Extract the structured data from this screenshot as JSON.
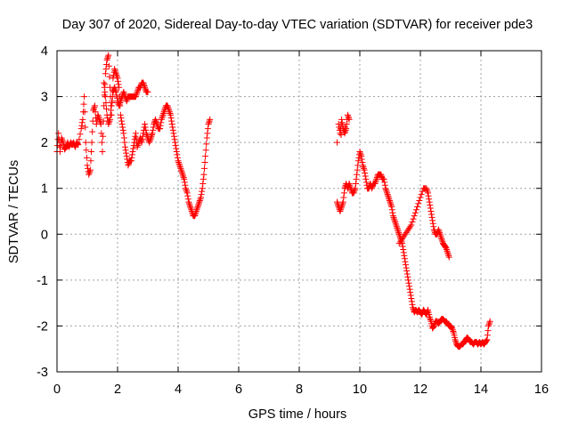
{
  "chart_data": {
    "type": "scatter",
    "title": "Day 307 of 2020, Sidereal Day-to-day VTEC variation (SDTVAR) for receiver pde3",
    "xlabel": "GPS time / hours",
    "ylabel": "SDTVAR / TECUs",
    "xlim": [
      0,
      16
    ],
    "ylim": [
      -3,
      4
    ],
    "xticks": [
      "0",
      "2",
      "4",
      "6",
      "8",
      "10",
      "12",
      "14",
      "16"
    ],
    "yticks": [
      "-3",
      "-2",
      "-1",
      "0",
      "1",
      "2",
      "3",
      "4"
    ],
    "grid": true,
    "series": [
      {
        "name": "SDTVAR",
        "color": "#ff0000",
        "marker": "plus",
        "segments": [
          [
            [
              0.0,
              1.8
            ],
            [
              0.05,
              2.2
            ],
            [
              0.1,
              1.8
            ],
            [
              0.15,
              2.1
            ],
            [
              0.2,
              2.0
            ],
            [
              0.25,
              1.85
            ],
            [
              0.3,
              1.9
            ],
            [
              0.35,
              2.0
            ],
            [
              0.4,
              1.9
            ],
            [
              0.45,
              2.0
            ],
            [
              0.5,
              1.95
            ],
            [
              0.55,
              2.0
            ],
            [
              0.6,
              1.9
            ],
            [
              0.65,
              2.0
            ],
            [
              0.7,
              1.95
            ],
            [
              0.8,
              2.3
            ],
            [
              0.85,
              2.5
            ],
            [
              0.9,
              3.0
            ],
            [
              0.95,
              2.0
            ],
            [
              1.0,
              1.5
            ],
            [
              1.05,
              1.3
            ],
            [
              1.1,
              1.4
            ],
            [
              1.15,
              2.0
            ],
            [
              1.2,
              2.7
            ],
            [
              1.25,
              2.8
            ],
            [
              1.3,
              2.4
            ],
            [
              1.35,
              2.6
            ],
            [
              1.4,
              2.5
            ],
            [
              1.45,
              2.4
            ],
            [
              1.5,
              1.8
            ],
            [
              1.55,
              2.8
            ],
            [
              1.6,
              3.5
            ],
            [
              1.65,
              3.8
            ],
            [
              1.7,
              3.9
            ],
            [
              1.75,
              3.2
            ],
            [
              1.8,
              2.6
            ],
            [
              1.85,
              3.4
            ],
            [
              1.9,
              3.6
            ],
            [
              1.95,
              3.5
            ],
            [
              2.0,
              3.4
            ],
            [
              2.05,
              3.2
            ],
            [
              2.1,
              2.6
            ],
            [
              2.15,
              2.4
            ],
            [
              2.2,
              2.2
            ],
            [
              2.25,
              1.9
            ],
            [
              2.3,
              1.7
            ],
            [
              2.35,
              1.5
            ],
            [
              2.4,
              1.6
            ],
            [
              2.45,
              1.6
            ],
            [
              2.5,
              1.8
            ],
            [
              2.55,
              2.0
            ],
            [
              2.6,
              2.2
            ],
            [
              2.65,
              1.9
            ],
            [
              2.7,
              2.0
            ],
            [
              2.75,
              2.1
            ],
            [
              2.8,
              2.0
            ],
            [
              2.85,
              2.2
            ],
            [
              2.9,
              2.4
            ],
            [
              2.95,
              2.2
            ],
            [
              3.0,
              2.1
            ],
            [
              3.05,
              2.0
            ],
            [
              3.1,
              2.1
            ],
            [
              3.15,
              2.2
            ],
            [
              3.2,
              2.4
            ],
            [
              3.25,
              2.5
            ],
            [
              3.3,
              2.4
            ],
            [
              3.35,
              2.3
            ],
            [
              3.4,
              2.3
            ],
            [
              3.45,
              2.5
            ],
            [
              3.5,
              2.6
            ],
            [
              3.55,
              2.7
            ],
            [
              3.6,
              2.8
            ],
            [
              3.65,
              2.8
            ],
            [
              3.7,
              2.7
            ],
            [
              3.75,
              2.6
            ],
            [
              3.8,
              2.4
            ],
            [
              3.85,
              2.2
            ],
            [
              3.9,
              2.0
            ],
            [
              3.95,
              1.8
            ],
            [
              4.0,
              1.6
            ],
            [
              4.05,
              1.5
            ],
            [
              4.1,
              1.4
            ],
            [
              4.15,
              1.3
            ],
            [
              4.2,
              1.2
            ],
            [
              4.25,
              1.0
            ],
            [
              4.3,
              0.9
            ],
            [
              4.35,
              0.7
            ],
            [
              4.4,
              0.6
            ],
            [
              4.45,
              0.5
            ],
            [
              4.5,
              0.4
            ],
            [
              4.55,
              0.4
            ],
            [
              4.6,
              0.5
            ],
            [
              4.65,
              0.6
            ],
            [
              4.7,
              0.7
            ],
            [
              4.75,
              0.8
            ],
            [
              4.8,
              1.0
            ],
            [
              4.85,
              1.3
            ],
            [
              4.9,
              1.7
            ],
            [
              4.95,
              2.1
            ],
            [
              5.0,
              2.4
            ],
            [
              5.05,
              2.5
            ]
          ],
          [
            [
              1.55,
              3.3
            ],
            [
              1.6,
              3.0
            ],
            [
              1.65,
              2.6
            ],
            [
              1.7,
              2.4
            ],
            [
              1.75,
              2.5
            ],
            [
              1.8,
              2.8
            ],
            [
              1.85,
              3.1
            ],
            [
              1.9,
              3.2
            ],
            [
              1.95,
              3.1
            ],
            [
              2.0,
              2.9
            ],
            [
              2.05,
              2.8
            ],
            [
              2.1,
              2.9
            ],
            [
              2.15,
              3.0
            ],
            [
              2.2,
              3.1
            ],
            [
              2.25,
              3.0
            ],
            [
              2.3,
              2.9
            ],
            [
              2.35,
              3.0
            ],
            [
              2.4,
              3.0
            ],
            [
              2.45,
              3.0
            ],
            [
              2.5,
              3.0
            ],
            [
              2.55,
              3.0
            ],
            [
              2.6,
              3.0
            ],
            [
              2.65,
              3.1
            ],
            [
              2.7,
              3.2
            ],
            [
              2.75,
              3.2
            ],
            [
              2.8,
              3.3
            ],
            [
              2.85,
              3.3
            ],
            [
              2.9,
              3.2
            ],
            [
              2.95,
              3.1
            ],
            [
              3.0,
              3.1
            ]
          ],
          [
            [
              9.25,
              0.7
            ],
            [
              9.3,
              0.6
            ],
            [
              9.35,
              0.5
            ],
            [
              9.4,
              0.6
            ],
            [
              9.45,
              0.7
            ],
            [
              9.5,
              1.0
            ],
            [
              9.55,
              1.1
            ],
            [
              9.6,
              1.0
            ],
            [
              9.65,
              1.1
            ],
            [
              9.7,
              1.0
            ],
            [
              9.75,
              0.9
            ],
            [
              9.8,
              0.9
            ],
            [
              9.85,
              1.0
            ],
            [
              9.9,
              1.3
            ],
            [
              9.95,
              1.6
            ],
            [
              10.0,
              1.8
            ],
            [
              10.05,
              1.7
            ],
            [
              10.1,
              1.5
            ],
            [
              10.15,
              1.4
            ],
            [
              10.2,
              1.2
            ],
            [
              10.25,
              1.0
            ],
            [
              10.3,
              1.0
            ],
            [
              10.35,
              1.1
            ],
            [
              10.4,
              1.0
            ],
            [
              10.45,
              1.1
            ],
            [
              10.5,
              1.1
            ],
            [
              10.55,
              1.2
            ],
            [
              10.6,
              1.3
            ],
            [
              10.65,
              1.3
            ],
            [
              10.7,
              1.3
            ],
            [
              10.75,
              1.2
            ],
            [
              10.8,
              1.2
            ],
            [
              10.85,
              1.0
            ],
            [
              10.9,
              0.9
            ],
            [
              10.95,
              0.8
            ],
            [
              11.0,
              0.7
            ],
            [
              11.05,
              0.6
            ],
            [
              11.1,
              0.4
            ],
            [
              11.15,
              0.3
            ],
            [
              11.2,
              0.2
            ],
            [
              11.25,
              0.1
            ],
            [
              11.3,
              0.0
            ],
            [
              11.35,
              -0.1
            ],
            [
              11.4,
              -0.2
            ],
            [
              11.45,
              -0.4
            ],
            [
              11.5,
              -0.6
            ],
            [
              11.55,
              -0.8
            ],
            [
              11.6,
              -1.0
            ],
            [
              11.65,
              -1.2
            ],
            [
              11.7,
              -1.4
            ],
            [
              11.75,
              -1.6
            ],
            [
              11.8,
              -1.7
            ],
            [
              11.85,
              -1.65
            ],
            [
              11.9,
              -1.7
            ],
            [
              11.95,
              -1.65
            ],
            [
              12.0,
              -1.7
            ],
            [
              12.05,
              -1.75
            ],
            [
              12.1,
              -1.65
            ],
            [
              12.15,
              -1.7
            ],
            [
              12.2,
              -1.75
            ],
            [
              12.25,
              -1.65
            ],
            [
              12.3,
              -1.8
            ],
            [
              12.35,
              -1.9
            ],
            [
              12.4,
              -2.05
            ],
            [
              12.45,
              -2.0
            ],
            [
              12.5,
              -1.9
            ],
            [
              12.55,
              -1.9
            ],
            [
              12.6,
              -1.95
            ],
            [
              12.65,
              -1.9
            ],
            [
              12.7,
              -1.85
            ],
            [
              12.75,
              -1.85
            ],
            [
              12.8,
              -1.9
            ],
            [
              12.85,
              -1.9
            ],
            [
              12.9,
              -1.95
            ],
            [
              12.95,
              -2.0
            ],
            [
              13.0,
              -2.0
            ],
            [
              13.05,
              -2.05
            ],
            [
              13.1,
              -2.15
            ],
            [
              13.15,
              -2.3
            ],
            [
              13.2,
              -2.4
            ],
            [
              13.25,
              -2.45
            ],
            [
              13.3,
              -2.45
            ],
            [
              13.35,
              -2.4
            ],
            [
              13.4,
              -2.4
            ],
            [
              13.45,
              -2.35
            ],
            [
              13.5,
              -2.3
            ],
            [
              13.55,
              -2.25
            ],
            [
              13.6,
              -2.3
            ],
            [
              13.65,
              -2.35
            ],
            [
              13.7,
              -2.35
            ],
            [
              13.75,
              -2.4
            ],
            [
              13.8,
              -2.35
            ],
            [
              13.85,
              -2.35
            ],
            [
              13.9,
              -2.4
            ],
            [
              13.95,
              -2.35
            ],
            [
              14.0,
              -2.4
            ],
            [
              14.05,
              -2.35
            ],
            [
              14.1,
              -2.4
            ],
            [
              14.15,
              -2.35
            ],
            [
              14.2,
              -2.3
            ],
            [
              14.25,
              -2.0
            ],
            [
              14.3,
              -1.9
            ]
          ],
          [
            [
              9.3,
              2.4
            ],
            [
              9.35,
              2.2
            ],
            [
              9.4,
              2.5
            ],
            [
              9.45,
              2.3
            ],
            [
              9.5,
              2.2
            ],
            [
              9.55,
              2.3
            ],
            [
              9.6,
              2.6
            ],
            [
              9.65,
              2.5
            ],
            [
              9.25,
              2.0
            ]
          ],
          [
            [
              11.3,
              -0.2
            ],
            [
              11.4,
              -0.1
            ],
            [
              11.5,
              0.0
            ],
            [
              11.6,
              0.1
            ],
            [
              11.7,
              0.2
            ],
            [
              11.8,
              0.4
            ],
            [
              11.9,
              0.6
            ],
            [
              12.0,
              0.8
            ],
            [
              12.1,
              1.0
            ],
            [
              12.2,
              1.0
            ],
            [
              12.25,
              0.9
            ],
            [
              12.3,
              0.7
            ],
            [
              12.35,
              0.5
            ],
            [
              12.4,
              0.3
            ],
            [
              12.45,
              0.1
            ],
            [
              12.5,
              0.0
            ],
            [
              12.55,
              0.0
            ],
            [
              12.6,
              0.1
            ],
            [
              12.65,
              0.0
            ],
            [
              12.7,
              -0.1
            ],
            [
              12.75,
              -0.2
            ],
            [
              12.8,
              -0.25
            ],
            [
              12.85,
              -0.3
            ],
            [
              12.9,
              -0.4
            ],
            [
              12.95,
              -0.5
            ]
          ]
        ]
      }
    ]
  }
}
